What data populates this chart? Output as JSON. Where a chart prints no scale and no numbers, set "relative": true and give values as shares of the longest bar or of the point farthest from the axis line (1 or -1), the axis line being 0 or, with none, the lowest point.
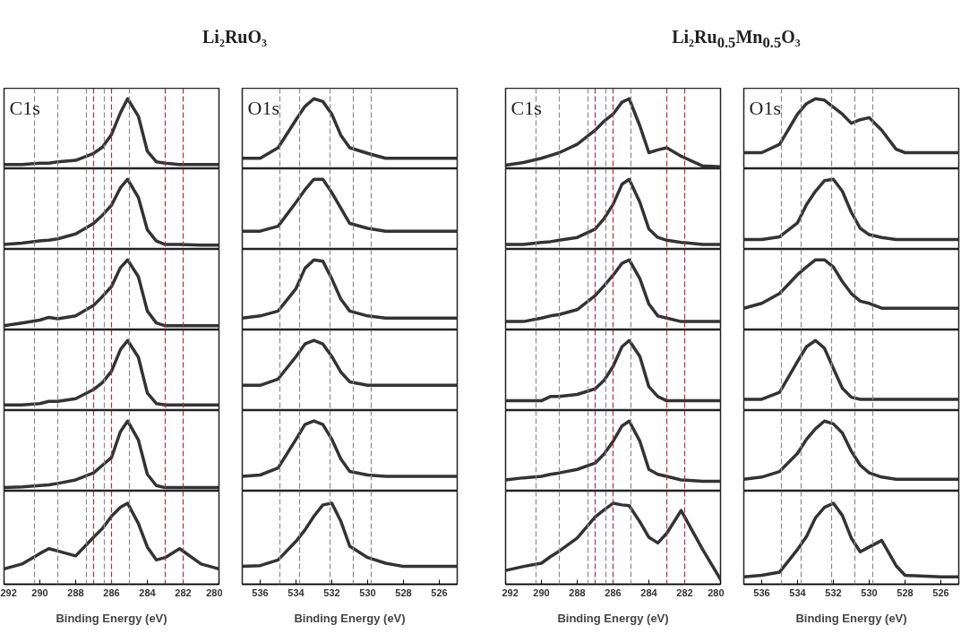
{
  "chart_data": [
    {
      "type": "line",
      "title": "Li₂RuO₃",
      "annotations": [
        "C1s"
      ],
      "xlim": [
        292,
        280
      ],
      "relative": true,
      "tick_labels": false,
      "ref_lines": [
        {
          "axis": "x",
          "value": 290.3,
          "color": "#8a8a8a"
        },
        {
          "axis": "x",
          "value": 289.0,
          "color": "#8a8a8a"
        },
        {
          "axis": "x",
          "value": 287.4,
          "color": "#8a8a8a"
        },
        {
          "axis": "x",
          "value": 287.0,
          "color": "#a83232"
        },
        {
          "axis": "x",
          "value": 286.4,
          "color": "#8a8a8a"
        },
        {
          "axis": "x",
          "value": 286.0,
          "color": "#a83232"
        },
        {
          "axis": "x",
          "value": 285.0,
          "color": "#8a8a8a"
        },
        {
          "axis": "x",
          "value": 283.0,
          "color": "#a83232"
        },
        {
          "axis": "x",
          "value": 282.0,
          "color": "#a83232"
        }
      ],
      "x": [
        292,
        291,
        290,
        289.5,
        289,
        288,
        287,
        286.5,
        286,
        285.5,
        285.1,
        284.5,
        284,
        283.5,
        283,
        282.2,
        281,
        280
      ],
      "color": "#333333",
      "values": [
        0.06,
        0.06,
        0.08,
        0.08,
        0.1,
        0.12,
        0.22,
        0.31,
        0.49,
        0.8,
        1,
        0.75,
        0.25,
        0.1,
        0.08,
        0.06,
        0.06,
        0.06
      ]
    },
    {
      "type": "line",
      "xlim": [
        292,
        280
      ],
      "relative": true,
      "tick_labels": false,
      "ref_lines": [
        {
          "axis": "x",
          "value": 290.3,
          "color": "#8a8a8a"
        },
        {
          "axis": "x",
          "value": 289.0,
          "color": "#8a8a8a"
        },
        {
          "axis": "x",
          "value": 287.4,
          "color": "#8a8a8a"
        },
        {
          "axis": "x",
          "value": 287.0,
          "color": "#a83232"
        },
        {
          "axis": "x",
          "value": 286.4,
          "color": "#8a8a8a"
        },
        {
          "axis": "x",
          "value": 286.0,
          "color": "#a83232"
        },
        {
          "axis": "x",
          "value": 285.0,
          "color": "#8a8a8a"
        },
        {
          "axis": "x",
          "value": 283.0,
          "color": "#a83232"
        },
        {
          "axis": "x",
          "value": 282.0,
          "color": "#a83232"
        }
      ],
      "x": [
        292,
        291,
        290,
        289.5,
        289,
        288,
        287,
        286.5,
        286,
        285.5,
        285.1,
        284.5,
        284,
        283.5,
        283,
        282.2,
        281,
        280
      ],
      "color": "#333333",
      "values": [
        0.07,
        0.09,
        0.12,
        0.13,
        0.15,
        0.22,
        0.37,
        0.49,
        0.63,
        0.88,
        1,
        0.74,
        0.28,
        0.12,
        0.07,
        0.07,
        0.06,
        0.06
      ]
    },
    {
      "type": "line",
      "xlim": [
        292,
        280
      ],
      "relative": true,
      "tick_labels": false,
      "ref_lines": [
        {
          "axis": "x",
          "value": 290.3,
          "color": "#8a8a8a"
        },
        {
          "axis": "x",
          "value": 289.0,
          "color": "#8a8a8a"
        },
        {
          "axis": "x",
          "value": 287.4,
          "color": "#8a8a8a"
        },
        {
          "axis": "x",
          "value": 287.0,
          "color": "#a83232"
        },
        {
          "axis": "x",
          "value": 286.4,
          "color": "#8a8a8a"
        },
        {
          "axis": "x",
          "value": 286.0,
          "color": "#a83232"
        },
        {
          "axis": "x",
          "value": 285.0,
          "color": "#8a8a8a"
        },
        {
          "axis": "x",
          "value": 283.0,
          "color": "#a83232"
        },
        {
          "axis": "x",
          "value": 282.0,
          "color": "#a83232"
        }
      ],
      "x": [
        292,
        291,
        290,
        289.5,
        289,
        288,
        287,
        286.5,
        286,
        285.5,
        285.1,
        284.5,
        284,
        283.5,
        283,
        282.2,
        281,
        280
      ],
      "color": "#333333",
      "values": [
        0.06,
        0.1,
        0.14,
        0.18,
        0.16,
        0.2,
        0.35,
        0.48,
        0.62,
        0.89,
        1,
        0.76,
        0.27,
        0.1,
        0.06,
        0.06,
        0.06,
        0.06
      ]
    },
    {
      "type": "line",
      "xlim": [
        292,
        280
      ],
      "relative": true,
      "tick_labels": false,
      "ref_lines": [
        {
          "axis": "x",
          "value": 290.3,
          "color": "#8a8a8a"
        },
        {
          "axis": "x",
          "value": 289.0,
          "color": "#8a8a8a"
        },
        {
          "axis": "x",
          "value": 287.4,
          "color": "#8a8a8a"
        },
        {
          "axis": "x",
          "value": 287.0,
          "color": "#a83232"
        },
        {
          "axis": "x",
          "value": 286.4,
          "color": "#8a8a8a"
        },
        {
          "axis": "x",
          "value": 286.0,
          "color": "#a83232"
        },
        {
          "axis": "x",
          "value": 285.0,
          "color": "#8a8a8a"
        },
        {
          "axis": "x",
          "value": 283.0,
          "color": "#a83232"
        },
        {
          "axis": "x",
          "value": 282.0,
          "color": "#a83232"
        }
      ],
      "x": [
        292,
        291,
        290,
        289.5,
        289,
        288,
        287,
        286.5,
        286,
        285.5,
        285.1,
        284.5,
        284,
        283.5,
        283,
        282.2,
        281,
        280
      ],
      "color": "#333333",
      "values": [
        0.08,
        0.08,
        0.1,
        0.13,
        0.13,
        0.17,
        0.3,
        0.4,
        0.56,
        0.87,
        1,
        0.76,
        0.25,
        0.1,
        0.08,
        0.08,
        0.08,
        0.08
      ]
    },
    {
      "type": "line",
      "xlim": [
        292,
        280
      ],
      "relative": true,
      "tick_labels": false,
      "ref_lines": [
        {
          "axis": "x",
          "value": 290.3,
          "color": "#8a8a8a"
        },
        {
          "axis": "x",
          "value": 289.0,
          "color": "#8a8a8a"
        },
        {
          "axis": "x",
          "value": 287.4,
          "color": "#8a8a8a"
        },
        {
          "axis": "x",
          "value": 287.0,
          "color": "#a83232"
        },
        {
          "axis": "x",
          "value": 286.4,
          "color": "#8a8a8a"
        },
        {
          "axis": "x",
          "value": 286.0,
          "color": "#a83232"
        },
        {
          "axis": "x",
          "value": 285.0,
          "color": "#8a8a8a"
        },
        {
          "axis": "x",
          "value": 283.0,
          "color": "#a83232"
        },
        {
          "axis": "x",
          "value": 282.0,
          "color": "#a83232"
        }
      ],
      "x": [
        292,
        291,
        290,
        289.5,
        289,
        288,
        287,
        286.5,
        286,
        285.5,
        285.1,
        284.5,
        284,
        283.5,
        283,
        282.2,
        281,
        280
      ],
      "color": "#333333",
      "values": [
        0.05,
        0.06,
        0.08,
        0.09,
        0.11,
        0.16,
        0.26,
        0.37,
        0.48,
        0.85,
        1,
        0.73,
        0.24,
        0.08,
        0.05,
        0.05,
        0.05,
        0.05
      ]
    },
    {
      "type": "line",
      "xlabel": "Binding Energy (eV)",
      "xlim": [
        292,
        280
      ],
      "xticks": [
        292,
        290,
        288,
        286,
        284,
        282,
        280
      ],
      "relative": true,
      "tick_labels": "x",
      "ref_lines": [
        {
          "axis": "x",
          "value": 290.3,
          "color": "#8a8a8a"
        },
        {
          "axis": "x",
          "value": 289.0,
          "color": "#8a8a8a"
        },
        {
          "axis": "x",
          "value": 287.4,
          "color": "#8a8a8a"
        },
        {
          "axis": "x",
          "value": 287.0,
          "color": "#a83232"
        },
        {
          "axis": "x",
          "value": 286.4,
          "color": "#8a8a8a"
        },
        {
          "axis": "x",
          "value": 286.0,
          "color": "#a83232"
        },
        {
          "axis": "x",
          "value": 285.0,
          "color": "#8a8a8a"
        },
        {
          "axis": "x",
          "value": 283.0,
          "color": "#a83232"
        },
        {
          "axis": "x",
          "value": 282.0,
          "color": "#a83232"
        }
      ],
      "x": [
        292,
        291,
        290,
        289.5,
        289,
        288,
        287,
        286.5,
        286,
        285.5,
        285.1,
        284.5,
        284,
        283.5,
        283,
        282.2,
        281,
        280
      ],
      "color": "#333333",
      "values": [
        0.19,
        0.25,
        0.38,
        0.44,
        0.41,
        0.35,
        0.58,
        0.69,
        0.84,
        0.95,
        1,
        0.75,
        0.46,
        0.3,
        0.33,
        0.44,
        0.25,
        0.19
      ]
    },
    {
      "type": "line",
      "annotations": [
        "O1s"
      ],
      "xlim": [
        537,
        525
      ],
      "relative": true,
      "tick_labels": false,
      "ref_lines": [
        {
          "axis": "x",
          "value": 534.9,
          "color": "#8a8a8a"
        },
        {
          "axis": "x",
          "value": 533.8,
          "color": "#8a8a8a"
        },
        {
          "axis": "x",
          "value": 532.1,
          "color": "#8a8a8a"
        },
        {
          "axis": "x",
          "value": 530.8,
          "color": "#8a8a8a"
        },
        {
          "axis": "x",
          "value": 529.8,
          "color": "#8a8a8a"
        }
      ],
      "x": [
        537,
        536,
        535,
        534,
        533.5,
        533,
        532.5,
        532,
        531.5,
        531,
        530,
        529,
        528,
        526,
        525
      ],
      "color": "#333333",
      "values": [
        0.15,
        0.15,
        0.3,
        0.7,
        0.89,
        1,
        0.96,
        0.78,
        0.48,
        0.3,
        0.22,
        0.15,
        0.15,
        0.15,
        0.15
      ]
    },
    {
      "type": "line",
      "xlim": [
        537,
        525
      ],
      "relative": true,
      "tick_labels": false,
      "ref_lines": [
        {
          "axis": "x",
          "value": 534.9,
          "color": "#8a8a8a"
        },
        {
          "axis": "x",
          "value": 533.8,
          "color": "#8a8a8a"
        },
        {
          "axis": "x",
          "value": 532.1,
          "color": "#8a8a8a"
        },
        {
          "axis": "x",
          "value": 530.8,
          "color": "#8a8a8a"
        },
        {
          "axis": "x",
          "value": 529.8,
          "color": "#8a8a8a"
        }
      ],
      "x": [
        537,
        536,
        535,
        534,
        533.5,
        533,
        532.5,
        532,
        531.5,
        531,
        530,
        529,
        528,
        526,
        525
      ],
      "color": "#333333",
      "values": [
        0.26,
        0.26,
        0.33,
        0.67,
        0.85,
        1,
        1,
        0.81,
        0.59,
        0.37,
        0.3,
        0.26,
        0.26,
        0.26,
        0.26
      ]
    },
    {
      "type": "line",
      "xlim": [
        537,
        525
      ],
      "relative": true,
      "tick_labels": false,
      "ref_lines": [
        {
          "axis": "x",
          "value": 534.9,
          "color": "#8a8a8a"
        },
        {
          "axis": "x",
          "value": 533.8,
          "color": "#8a8a8a"
        },
        {
          "axis": "x",
          "value": 532.1,
          "color": "#8a8a8a"
        },
        {
          "axis": "x",
          "value": 530.8,
          "color": "#8a8a8a"
        },
        {
          "axis": "x",
          "value": 529.8,
          "color": "#8a8a8a"
        }
      ],
      "x": [
        537,
        536,
        535,
        534,
        533.5,
        533,
        532.5,
        532,
        531.5,
        531,
        530,
        529,
        528,
        526,
        525
      ],
      "color": "#333333",
      "values": [
        0.17,
        0.2,
        0.27,
        0.59,
        0.88,
        1,
        0.98,
        0.73,
        0.44,
        0.27,
        0.2,
        0.17,
        0.17,
        0.17,
        0.17
      ]
    },
    {
      "type": "line",
      "xlim": [
        537,
        525
      ],
      "relative": true,
      "tick_labels": false,
      "ref_lines": [
        {
          "axis": "x",
          "value": 534.9,
          "color": "#8a8a8a"
        },
        {
          "axis": "x",
          "value": 533.8,
          "color": "#8a8a8a"
        },
        {
          "axis": "x",
          "value": 532.1,
          "color": "#8a8a8a"
        },
        {
          "axis": "x",
          "value": 530.8,
          "color": "#8a8a8a"
        },
        {
          "axis": "x",
          "value": 529.8,
          "color": "#8a8a8a"
        }
      ],
      "x": [
        537,
        536,
        535,
        534,
        533.5,
        533,
        532.5,
        532,
        531.5,
        531,
        530,
        529,
        528,
        526,
        525
      ],
      "color": "#333333",
      "values": [
        0.36,
        0.36,
        0.45,
        0.77,
        0.95,
        1,
        0.95,
        0.77,
        0.55,
        0.41,
        0.36,
        0.36,
        0.36,
        0.36,
        0.36
      ]
    },
    {
      "type": "line",
      "xlim": [
        537,
        525
      ],
      "relative": true,
      "tick_labels": false,
      "ref_lines": [
        {
          "axis": "x",
          "value": 534.9,
          "color": "#8a8a8a"
        },
        {
          "axis": "x",
          "value": 533.8,
          "color": "#8a8a8a"
        },
        {
          "axis": "x",
          "value": 532.1,
          "color": "#8a8a8a"
        },
        {
          "axis": "x",
          "value": 530.8,
          "color": "#8a8a8a"
        },
        {
          "axis": "x",
          "value": 529.8,
          "color": "#8a8a8a"
        }
      ],
      "x": [
        537,
        536,
        535,
        534,
        533.5,
        533,
        532.5,
        532,
        531.5,
        531,
        530,
        529,
        528,
        526,
        525
      ],
      "color": "#333333",
      "values": [
        0.21,
        0.23,
        0.33,
        0.74,
        0.95,
        1,
        0.95,
        0.74,
        0.46,
        0.28,
        0.23,
        0.21,
        0.21,
        0.21,
        0.21
      ]
    },
    {
      "type": "line",
      "xlabel": "Binding Energy (eV)",
      "xlim": [
        537,
        525
      ],
      "xticks": [
        536,
        534,
        532,
        530,
        528,
        526
      ],
      "relative": true,
      "tick_labels": "x",
      "ref_lines": [
        {
          "axis": "x",
          "value": 534.9,
          "color": "#8a8a8a"
        },
        {
          "axis": "x",
          "value": 533.8,
          "color": "#8a8a8a"
        },
        {
          "axis": "x",
          "value": 532.1,
          "color": "#8a8a8a"
        },
        {
          "axis": "x",
          "value": 530.8,
          "color": "#8a8a8a"
        },
        {
          "axis": "x",
          "value": 529.8,
          "color": "#8a8a8a"
        }
      ],
      "x": [
        537,
        536,
        535,
        534,
        533.5,
        533,
        532.5,
        532,
        531.5,
        531,
        530,
        529,
        528,
        526,
        525
      ],
      "color": "#333333",
      "values": [
        0.22,
        0.23,
        0.3,
        0.53,
        0.67,
        0.84,
        0.98,
        1,
        0.78,
        0.47,
        0.33,
        0.26,
        0.22,
        0.22,
        0.22
      ]
    },
    {
      "type": "line",
      "title": "Li₂Ru$_{0.5}$Mn$_{0.5}$O₃",
      "annotations": [
        "C1s"
      ],
      "xlim": [
        292,
        280
      ],
      "relative": true,
      "tick_labels": false,
      "ref_lines": [
        {
          "axis": "x",
          "value": 290.3,
          "color": "#8a8a8a"
        },
        {
          "axis": "x",
          "value": 289.0,
          "color": "#8a8a8a"
        },
        {
          "axis": "x",
          "value": 287.4,
          "color": "#8a8a8a"
        },
        {
          "axis": "x",
          "value": 287.0,
          "color": "#a83232"
        },
        {
          "axis": "x",
          "value": 286.4,
          "color": "#8a8a8a"
        },
        {
          "axis": "x",
          "value": 286.0,
          "color": "#a83232"
        },
        {
          "axis": "x",
          "value": 285.0,
          "color": "#8a8a8a"
        },
        {
          "axis": "x",
          "value": 283.0,
          "color": "#a83232"
        },
        {
          "axis": "x",
          "value": 282.0,
          "color": "#a83232"
        }
      ],
      "x": [
        292,
        291,
        290,
        289.5,
        289,
        288,
        287,
        286.5,
        286,
        285.5,
        285.1,
        284.5,
        284,
        283.5,
        283,
        282.2,
        281,
        280
      ],
      "color": "#333333",
      "values": [
        0.05,
        0.09,
        0.15,
        0.19,
        0.23,
        0.35,
        0.55,
        0.68,
        0.78,
        0.95,
        1,
        0.61,
        0.23,
        0.27,
        0.3,
        0.18,
        0.04,
        0.03
      ]
    },
    {
      "type": "line",
      "xlim": [
        292,
        280
      ],
      "relative": true,
      "tick_labels": false,
      "ref_lines": [
        {
          "axis": "x",
          "value": 290.3,
          "color": "#8a8a8a"
        },
        {
          "axis": "x",
          "value": 289.0,
          "color": "#8a8a8a"
        },
        {
          "axis": "x",
          "value": 287.4,
          "color": "#8a8a8a"
        },
        {
          "axis": "x",
          "value": 287.0,
          "color": "#a83232"
        },
        {
          "axis": "x",
          "value": 286.4,
          "color": "#8a8a8a"
        },
        {
          "axis": "x",
          "value": 286.0,
          "color": "#a83232"
        },
        {
          "axis": "x",
          "value": 285.0,
          "color": "#8a8a8a"
        },
        {
          "axis": "x",
          "value": 283.0,
          "color": "#a83232"
        },
        {
          "axis": "x",
          "value": 282.0,
          "color": "#a83232"
        }
      ],
      "x": [
        292,
        291,
        290,
        289.5,
        289,
        288,
        287,
        286.5,
        286,
        285.5,
        285.1,
        284.5,
        284,
        283.5,
        283,
        282.2,
        281,
        280
      ],
      "color": "#333333",
      "values": [
        0.07,
        0.07,
        0.1,
        0.11,
        0.13,
        0.17,
        0.29,
        0.44,
        0.64,
        0.93,
        1,
        0.67,
        0.29,
        0.17,
        0.13,
        0.1,
        0.07,
        0.07
      ]
    },
    {
      "type": "line",
      "xlim": [
        292,
        280
      ],
      "relative": true,
      "tick_labels": false,
      "ref_lines": [
        {
          "axis": "x",
          "value": 290.3,
          "color": "#8a8a8a"
        },
        {
          "axis": "x",
          "value": 289.0,
          "color": "#8a8a8a"
        },
        {
          "axis": "x",
          "value": 287.4,
          "color": "#8a8a8a"
        },
        {
          "axis": "x",
          "value": 287.0,
          "color": "#a83232"
        },
        {
          "axis": "x",
          "value": 286.4,
          "color": "#8a8a8a"
        },
        {
          "axis": "x",
          "value": 286.0,
          "color": "#a83232"
        },
        {
          "axis": "x",
          "value": 285.0,
          "color": "#8a8a8a"
        },
        {
          "axis": "x",
          "value": 283.0,
          "color": "#a83232"
        },
        {
          "axis": "x",
          "value": 282.0,
          "color": "#a83232"
        }
      ],
      "x": [
        292,
        291,
        290,
        289.5,
        289,
        288,
        287,
        286.5,
        286,
        285.5,
        285.1,
        284.5,
        284,
        283.5,
        283,
        282.2,
        281,
        280
      ],
      "color": "#333333",
      "values": [
        0.12,
        0.12,
        0.17,
        0.2,
        0.22,
        0.29,
        0.49,
        0.63,
        0.78,
        0.95,
        1,
        0.73,
        0.37,
        0.2,
        0.17,
        0.12,
        0.12,
        0.12
      ]
    },
    {
      "type": "line",
      "xlim": [
        292,
        280
      ],
      "relative": true,
      "tick_labels": false,
      "ref_lines": [
        {
          "axis": "x",
          "value": 290.3,
          "color": "#8a8a8a"
        },
        {
          "axis": "x",
          "value": 289.0,
          "color": "#8a8a8a"
        },
        {
          "axis": "x",
          "value": 287.4,
          "color": "#8a8a8a"
        },
        {
          "axis": "x",
          "value": 287.0,
          "color": "#a83232"
        },
        {
          "axis": "x",
          "value": 286.4,
          "color": "#8a8a8a"
        },
        {
          "axis": "x",
          "value": 286.0,
          "color": "#a83232"
        },
        {
          "axis": "x",
          "value": 285.0,
          "color": "#8a8a8a"
        },
        {
          "axis": "x",
          "value": 283.0,
          "color": "#a83232"
        },
        {
          "axis": "x",
          "value": 282.0,
          "color": "#a83232"
        }
      ],
      "x": [
        292,
        291,
        290,
        289.5,
        289,
        288,
        287,
        286.5,
        286,
        285.5,
        285.1,
        284.5,
        284,
        283.5,
        283,
        282.2,
        281,
        280
      ],
      "color": "#333333",
      "values": [
        0.14,
        0.14,
        0.14,
        0.2,
        0.2,
        0.23,
        0.31,
        0.43,
        0.63,
        0.91,
        1,
        0.77,
        0.34,
        0.2,
        0.14,
        0.14,
        0.14,
        0.14
      ]
    },
    {
      "type": "line",
      "xlim": [
        292,
        280
      ],
      "relative": true,
      "tick_labels": false,
      "ref_lines": [
        {
          "axis": "x",
          "value": 290.3,
          "color": "#8a8a8a"
        },
        {
          "axis": "x",
          "value": 289.0,
          "color": "#8a8a8a"
        },
        {
          "axis": "x",
          "value": 287.4,
          "color": "#8a8a8a"
        },
        {
          "axis": "x",
          "value": 287.0,
          "color": "#a83232"
        },
        {
          "axis": "x",
          "value": 286.4,
          "color": "#8a8a8a"
        },
        {
          "axis": "x",
          "value": 286.0,
          "color": "#a83232"
        },
        {
          "axis": "x",
          "value": 285.0,
          "color": "#8a8a8a"
        },
        {
          "axis": "x",
          "value": 283.0,
          "color": "#a83232"
        },
        {
          "axis": "x",
          "value": 282.0,
          "color": "#a83232"
        }
      ],
      "x": [
        292,
        291,
        290,
        289.5,
        289,
        288,
        287,
        286.5,
        286,
        285.5,
        285.1,
        284.5,
        284,
        283.5,
        283,
        282.2,
        281,
        280
      ],
      "color": "#333333",
      "values": [
        0.16,
        0.19,
        0.21,
        0.24,
        0.26,
        0.31,
        0.4,
        0.53,
        0.71,
        0.93,
        1,
        0.71,
        0.31,
        0.24,
        0.21,
        0.16,
        0.14,
        0.14
      ]
    },
    {
      "type": "line",
      "xlabel": "Binding Energy (eV)",
      "xlim": [
        292,
        280
      ],
      "xticks": [
        292,
        290,
        288,
        286,
        284,
        282,
        280
      ],
      "relative": true,
      "tick_labels": "x",
      "ref_lines": [
        {
          "axis": "x",
          "value": 290.3,
          "color": "#8a8a8a"
        },
        {
          "axis": "x",
          "value": 289.0,
          "color": "#8a8a8a"
        },
        {
          "axis": "x",
          "value": 287.4,
          "color": "#8a8a8a"
        },
        {
          "axis": "x",
          "value": 287.0,
          "color": "#a83232"
        },
        {
          "axis": "x",
          "value": 286.4,
          "color": "#8a8a8a"
        },
        {
          "axis": "x",
          "value": 286.0,
          "color": "#a83232"
        },
        {
          "axis": "x",
          "value": 285.0,
          "color": "#8a8a8a"
        },
        {
          "axis": "x",
          "value": 283.0,
          "color": "#a83232"
        },
        {
          "axis": "x",
          "value": 282.0,
          "color": "#a83232"
        }
      ],
      "x": [
        292,
        291,
        290,
        289.5,
        289,
        288,
        287,
        286.5,
        286,
        285.5,
        285.1,
        284.5,
        284,
        283.5,
        283,
        282.2,
        281,
        280
      ],
      "color": "#333333",
      "values": [
        0.17,
        0.22,
        0.26,
        0.34,
        0.41,
        0.57,
        0.83,
        0.92,
        1,
        0.98,
        0.97,
        0.77,
        0.58,
        0.51,
        0.63,
        0.91,
        0.43,
        0.06
      ]
    },
    {
      "type": "line",
      "annotations": [
        "O1s"
      ],
      "xlim": [
        537,
        525
      ],
      "relative": true,
      "tick_labels": false,
      "ref_lines": [
        {
          "axis": "x",
          "value": 534.9,
          "color": "#8a8a8a"
        },
        {
          "axis": "x",
          "value": 533.8,
          "color": "#8a8a8a"
        },
        {
          "axis": "x",
          "value": 532.1,
          "color": "#8a8a8a"
        },
        {
          "axis": "x",
          "value": 530.8,
          "color": "#8a8a8a"
        },
        {
          "axis": "x",
          "value": 529.8,
          "color": "#8a8a8a"
        }
      ],
      "x": [
        537,
        536,
        535,
        534,
        533.5,
        533,
        532.5,
        532,
        531.5,
        531,
        530.5,
        530,
        529.3,
        528.5,
        528,
        526,
        525
      ],
      "color": "#333333",
      "values": [
        0.23,
        0.23,
        0.35,
        0.78,
        0.93,
        1,
        0.98,
        0.88,
        0.78,
        0.65,
        0.7,
        0.73,
        0.55,
        0.28,
        0.23,
        0.23,
        0.23
      ]
    },
    {
      "type": "line",
      "xlim": [
        537,
        525
      ],
      "relative": true,
      "tick_labels": false,
      "ref_lines": [
        {
          "axis": "x",
          "value": 534.9,
          "color": "#8a8a8a"
        },
        {
          "axis": "x",
          "value": 533.8,
          "color": "#8a8a8a"
        },
        {
          "axis": "x",
          "value": 532.1,
          "color": "#8a8a8a"
        },
        {
          "axis": "x",
          "value": 530.8,
          "color": "#8a8a8a"
        },
        {
          "axis": "x",
          "value": 529.8,
          "color": "#8a8a8a"
        }
      ],
      "x": [
        537,
        536,
        535,
        534,
        533.5,
        533,
        532.5,
        532,
        531.5,
        531,
        530.5,
        530,
        529.3,
        528.5,
        528,
        526,
        525
      ],
      "color": "#333333",
      "values": [
        0.14,
        0.14,
        0.18,
        0.38,
        0.64,
        0.83,
        0.98,
        1,
        0.83,
        0.53,
        0.3,
        0.21,
        0.17,
        0.14,
        0.14,
        0.14,
        0.14
      ]
    },
    {
      "type": "line",
      "xlim": [
        537,
        525
      ],
      "relative": true,
      "tick_labels": false,
      "ref_lines": [
        {
          "axis": "x",
          "value": 534.9,
          "color": "#8a8a8a"
        },
        {
          "axis": "x",
          "value": 533.8,
          "color": "#8a8a8a"
        },
        {
          "axis": "x",
          "value": 532.1,
          "color": "#8a8a8a"
        },
        {
          "axis": "x",
          "value": 530.8,
          "color": "#8a8a8a"
        },
        {
          "axis": "x",
          "value": 529.8,
          "color": "#8a8a8a"
        }
      ],
      "x": [
        537,
        536,
        535,
        534,
        533.5,
        533,
        532.5,
        532,
        531.5,
        531,
        530.5,
        530,
        529.3,
        528.5,
        528,
        526,
        525
      ],
      "color": "#333333",
      "values": [
        0.31,
        0.38,
        0.52,
        0.79,
        0.9,
        1,
        1,
        0.9,
        0.69,
        0.52,
        0.41,
        0.38,
        0.31,
        0.31,
        0.31,
        0.31,
        0.31
      ]
    },
    {
      "type": "line",
      "xlim": [
        537,
        525
      ],
      "relative": true,
      "tick_labels": false,
      "ref_lines": [
        {
          "axis": "x",
          "value": 534.9,
          "color": "#8a8a8a"
        },
        {
          "axis": "x",
          "value": 533.8,
          "color": "#8a8a8a"
        },
        {
          "axis": "x",
          "value": 532.1,
          "color": "#8a8a8a"
        },
        {
          "axis": "x",
          "value": 530.8,
          "color": "#8a8a8a"
        },
        {
          "axis": "x",
          "value": 529.8,
          "color": "#8a8a8a"
        }
      ],
      "x": [
        537,
        536,
        535,
        534,
        533.5,
        533,
        532.5,
        532,
        531.5,
        531,
        530.5,
        530,
        529.3,
        528.5,
        528,
        526,
        525
      ],
      "color": "#333333",
      "values": [
        0.16,
        0.16,
        0.26,
        0.7,
        0.91,
        1,
        0.89,
        0.6,
        0.32,
        0.19,
        0.16,
        0.16,
        0.16,
        0.16,
        0.16,
        0.16,
        0.16
      ]
    },
    {
      "type": "line",
      "xlim": [
        537,
        525
      ],
      "relative": true,
      "tick_labels": false,
      "ref_lines": [
        {
          "axis": "x",
          "value": 534.9,
          "color": "#8a8a8a"
        },
        {
          "axis": "x",
          "value": 533.8,
          "color": "#8a8a8a"
        },
        {
          "axis": "x",
          "value": 532.1,
          "color": "#8a8a8a"
        },
        {
          "axis": "x",
          "value": 530.8,
          "color": "#8a8a8a"
        },
        {
          "axis": "x",
          "value": 529.8,
          "color": "#8a8a8a"
        }
      ],
      "x": [
        537,
        536,
        535,
        534,
        533.5,
        533,
        532.5,
        532,
        531.5,
        531,
        530.5,
        530,
        529.3,
        528.5,
        528,
        526,
        525
      ],
      "color": "#333333",
      "values": [
        0.17,
        0.2,
        0.28,
        0.54,
        0.74,
        0.89,
        1,
        0.96,
        0.83,
        0.57,
        0.37,
        0.26,
        0.2,
        0.17,
        0.17,
        0.17,
        0.17
      ]
    },
    {
      "type": "line",
      "xlabel": "Binding Energy (eV)",
      "xlim": [
        537,
        525
      ],
      "xticks": [
        536,
        534,
        532,
        530,
        528,
        526
      ],
      "relative": true,
      "tick_labels": "x",
      "ref_lines": [
        {
          "axis": "x",
          "value": 534.9,
          "color": "#8a8a8a"
        },
        {
          "axis": "x",
          "value": 533.8,
          "color": "#8a8a8a"
        },
        {
          "axis": "x",
          "value": 532.1,
          "color": "#8a8a8a"
        },
        {
          "axis": "x",
          "value": 530.8,
          "color": "#8a8a8a"
        },
        {
          "axis": "x",
          "value": 529.8,
          "color": "#8a8a8a"
        }
      ],
      "x": [
        537,
        536,
        535,
        534,
        533.5,
        533,
        532.5,
        532,
        531.5,
        531,
        530.5,
        530,
        529.3,
        528.5,
        528,
        526,
        525
      ],
      "color": "#333333",
      "values": [
        0.09,
        0.11,
        0.15,
        0.43,
        0.59,
        0.82,
        0.95,
        1,
        0.85,
        0.57,
        0.4,
        0.46,
        0.54,
        0.23,
        0.11,
        0.09,
        0.09
      ]
    }
  ]
}
